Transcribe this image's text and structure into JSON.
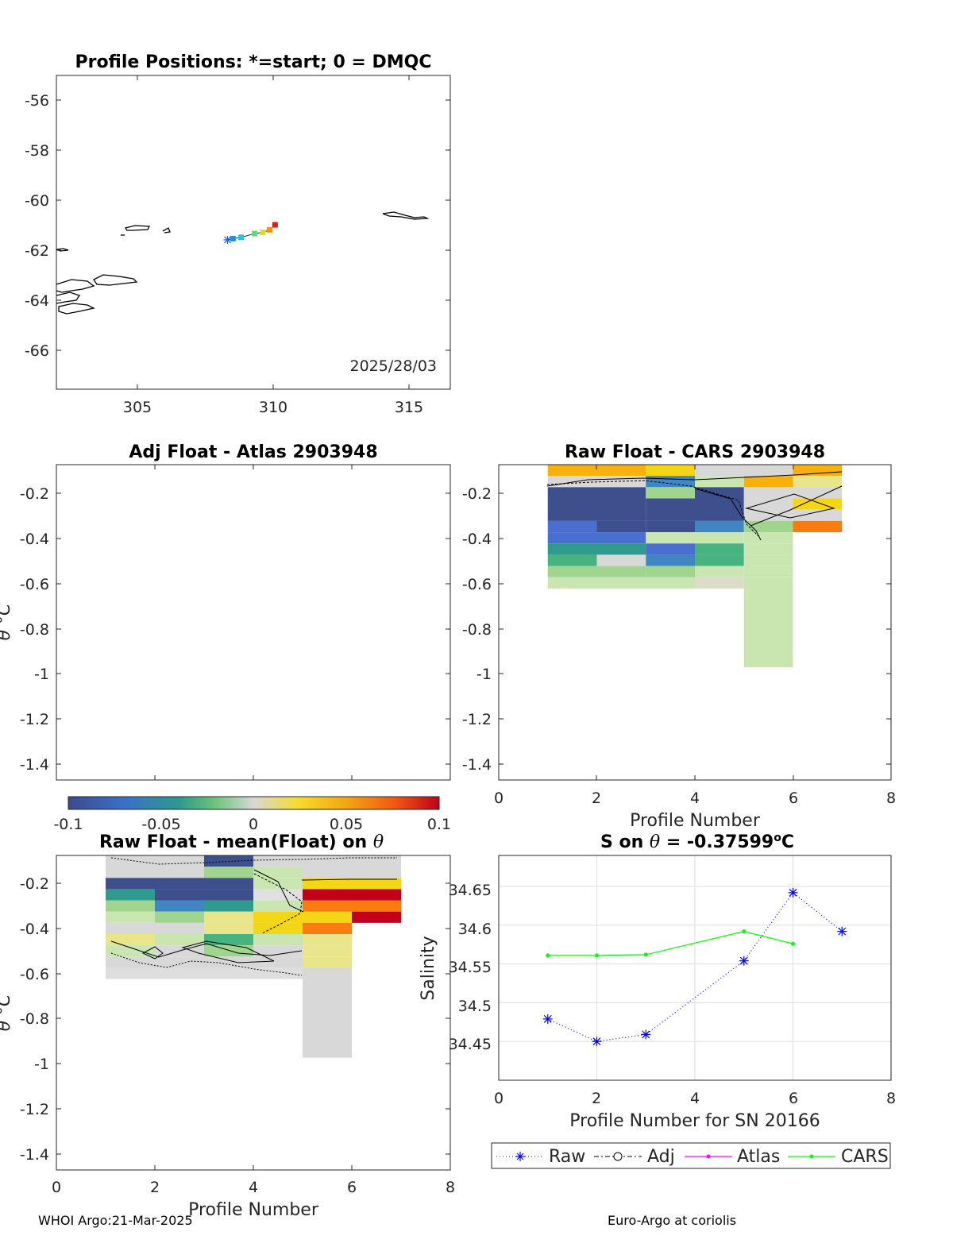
{
  "map": {
    "title": "Profile Positions: *=start; 0 = DMQC",
    "date": "2025/28/03",
    "xticks": [
      "305",
      "310",
      "315"
    ],
    "yticks": [
      "-56",
      "-58",
      "-60",
      "-62",
      "-64",
      "-66"
    ]
  },
  "panels": {
    "adj_atlas": {
      "title": "Adj Float - Atlas  2903948"
    },
    "raw_cars": {
      "title": "Raw Float - CARS  2903948",
      "xlabel": "Profile Number"
    },
    "raw_mean": {
      "title_prefix": "Raw Float - mean(Float) on ",
      "theta": "θ",
      "xlabel": "Profile Number"
    },
    "theta_ylabel": "θ °C",
    "theta_yticks": [
      "-0.2",
      "-0.4",
      "-0.6",
      "-0.8",
      "-1",
      "-1.2",
      "-1.4"
    ],
    "profile_xticks": [
      "0",
      "2",
      "4",
      "6",
      "8"
    ]
  },
  "colorbar": {
    "ticks": [
      "-0.1",
      "-0.05",
      "0",
      "0.05",
      "0.1"
    ]
  },
  "salinity": {
    "title_prefix": "S on ",
    "theta": "θ",
    "title_value": " = -0.37599",
    "title_unit": "C",
    "ylabel": "Salinity",
    "xlabel": "Profile Number for SN 20166",
    "yticks": [
      "34.65",
      "34.6",
      "34.55",
      "34.5",
      "34.45"
    ],
    "xticks": [
      "0",
      "2",
      "4",
      "6",
      "8"
    ]
  },
  "legend": {
    "raw": "Raw",
    "adj": "Adj",
    "atlas": "Atlas",
    "cars": "CARS"
  },
  "footer": {
    "left": "WHOI Argo:21-Mar-2025",
    "right": "Euro-Argo at coriolis"
  },
  "chart_data": [
    {
      "type": "scatter",
      "title": "Profile Positions: *=start; 0 = DMQC",
      "xlim": [
        302,
        316.5
      ],
      "ylim": [
        -67.5,
        -55
      ],
      "points": [
        {
          "x": 308.3,
          "y": -61.55,
          "color": "#1f5fe0"
        },
        {
          "x": 308.5,
          "y": -61.5,
          "color": "#1f8fe8"
        },
        {
          "x": 308.8,
          "y": -61.45,
          "color": "#17c7e6"
        },
        {
          "x": 309.3,
          "y": -61.3,
          "color": "#5fdc7a"
        },
        {
          "x": 309.6,
          "y": -61.25,
          "color": "#d9e02c"
        },
        {
          "x": 309.85,
          "y": -61.15,
          "color": "#f5901e"
        },
        {
          "x": 310.05,
          "y": -60.95,
          "color": "#e8180c"
        }
      ]
    },
    {
      "type": "heatmap",
      "title": "Raw Float - CARS  2903948",
      "xlabel": "Profile Number",
      "xlim": [
        0,
        8
      ],
      "ylim": [
        -1.48,
        -0.08
      ],
      "colorbar_range": [
        -0.1,
        0.1
      ]
    },
    {
      "type": "heatmap",
      "title": "Raw Float - mean(Float) on θ",
      "xlabel": "Profile Number",
      "xlim": [
        0,
        8
      ],
      "ylim": [
        -1.48,
        -0.08
      ],
      "colorbar_range": [
        -0.1,
        0.1
      ]
    },
    {
      "type": "line",
      "title": "S on θ = -0.37599°C",
      "xlabel": "Profile Number for SN 20166",
      "ylabel": "Salinity",
      "xlim": [
        0,
        8
      ],
      "ylim": [
        34.4,
        34.69
      ],
      "series": [
        {
          "name": "Raw",
          "color": "#0000ff",
          "x": [
            1,
            2,
            3,
            5,
            6,
            7
          ],
          "y": [
            34.479,
            34.45,
            34.459,
            34.554,
            34.642,
            34.592
          ]
        },
        {
          "name": "CARS",
          "color": "#00ff00",
          "x": [
            1,
            2,
            3,
            5,
            6
          ],
          "y": [
            34.561,
            34.561,
            34.562,
            34.592,
            34.576
          ]
        }
      ]
    }
  ]
}
